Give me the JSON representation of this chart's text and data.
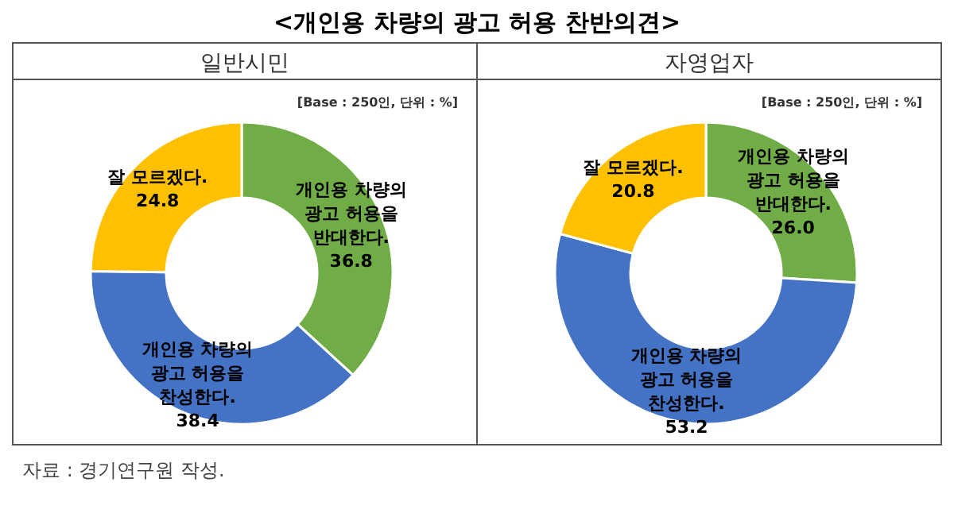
{
  "chart_data": [
    {
      "type": "donut",
      "title": "<개인용 차량의 광고 허용 찬반의견>",
      "subtitle": "일반시민",
      "categories": [
        "개인용 차량의\n광고 허용을\n반대한다.",
        "개인용 차량의\n광고 허용을\n찬성한다.",
        "잘 모르겠다."
      ],
      "values": [
        36.8,
        38.4,
        24.8
      ],
      "value_labels": [
        "36.8",
        "38.4",
        "24.8"
      ],
      "colors": [
        "#70ad47",
        "#4472c4",
        "#ffc000"
      ],
      "annotations": [
        "[Base : 250인, 단위 : %]",
        "자료 : 경기연구원 작성."
      ]
    },
    {
      "type": "donut",
      "subtitle": "자영업자",
      "categories": [
        "개인용 차량의\n광고 허용을\n반대한다.",
        "개인용 차량의\n광고 허용을\n찬성한다.",
        "잘 모르겠다."
      ],
      "values": [
        26.0,
        53.2,
        20.8
      ],
      "value_labels": [
        "26.0",
        "53.2",
        "20.8"
      ],
      "colors": [
        "#70ad47",
        "#4472c4",
        "#ffc000"
      ],
      "annotations": [
        "[Base : 250인, 단위 : %]"
      ]
    }
  ]
}
